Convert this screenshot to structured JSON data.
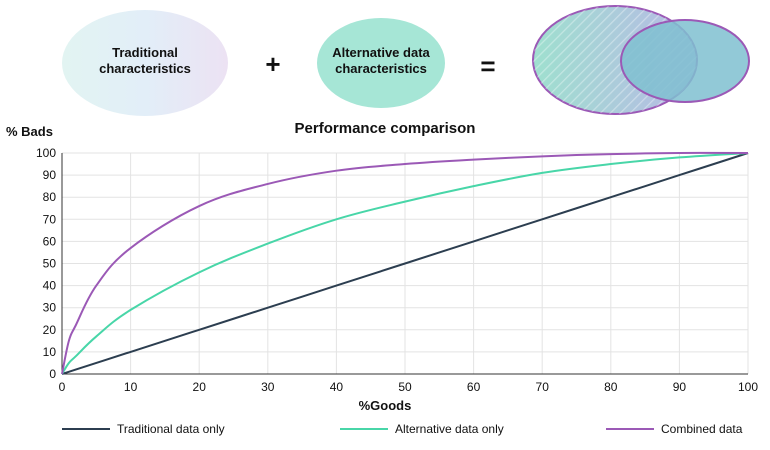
{
  "diagram": {
    "traditional_label_1": "Traditional",
    "traditional_label_2": "characteristics",
    "plus_sign": "+",
    "alternative_label_1": "Alternative data",
    "alternative_label_2": "characteristics",
    "equals_sign": "=",
    "colors": {
      "traditional_fill": "#e4f1f6",
      "alternative_fill": "#a6e6d6",
      "combined_stroke": "#9b59b6"
    }
  },
  "chart_data": {
    "type": "line",
    "title": "Performance comparison",
    "xlabel": "%Goods",
    "ylabel": "% Bads",
    "xlim": [
      0,
      100
    ],
    "ylim": [
      0,
      100
    ],
    "x_ticks": [
      "0",
      "10",
      "20",
      "30",
      "40",
      "50",
      "60",
      "70",
      "80",
      "90",
      "100"
    ],
    "y_ticks": [
      "0",
      "10",
      "20",
      "30",
      "40",
      "50",
      "60",
      "70",
      "80",
      "90",
      "100"
    ],
    "grid": true,
    "legend_position": "bottom",
    "x": [
      0,
      1,
      2,
      5,
      10,
      20,
      30,
      40,
      50,
      60,
      70,
      80,
      90,
      100
    ],
    "series": [
      {
        "name": "Traditional data only",
        "color": "#2c3e50",
        "values": [
          0,
          1,
          2,
          5,
          10,
          20,
          30,
          40,
          50,
          60,
          70,
          80,
          90,
          100
        ]
      },
      {
        "name": "Alternative data only",
        "color": "#48d6a8",
        "values": [
          0,
          5,
          8,
          17,
          29,
          46,
          59,
          70,
          78,
          85,
          91,
          95,
          98,
          100
        ]
      },
      {
        "name": "Combined data",
        "color": "#9b59b6",
        "values": [
          0,
          15,
          22,
          40,
          57,
          76,
          86,
          92,
          95,
          97,
          98.5,
          99.5,
          100,
          100
        ]
      }
    ]
  }
}
